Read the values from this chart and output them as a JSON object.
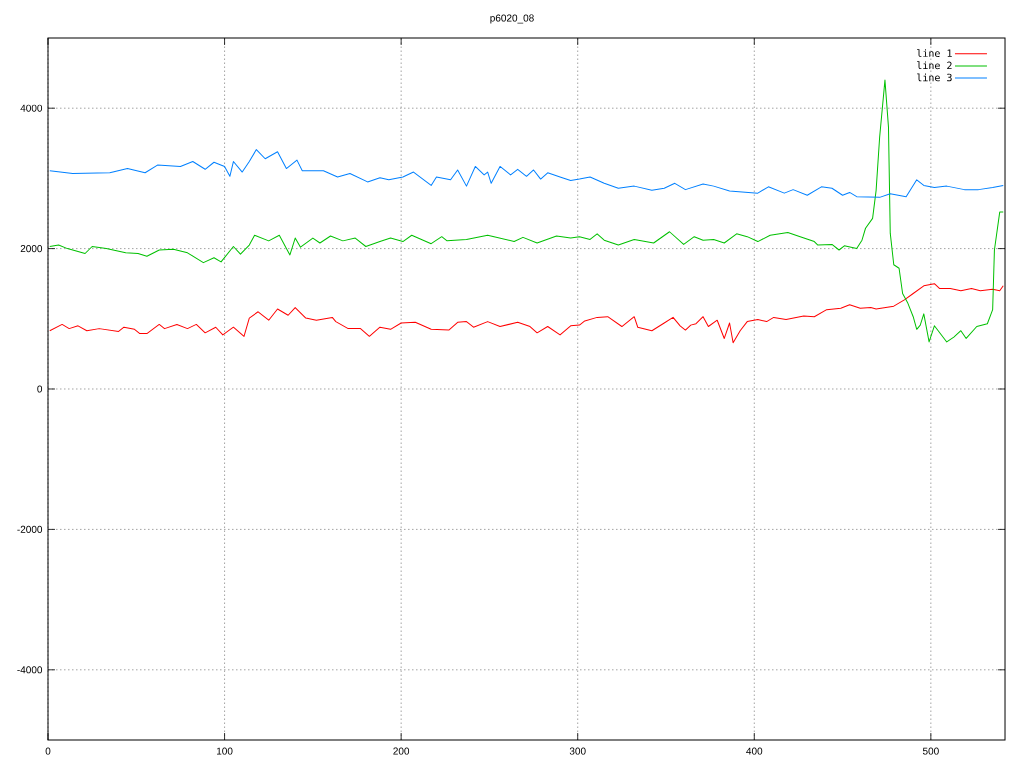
{
  "chart_data": {
    "type": "line",
    "title": "p6020_08",
    "xlim": [
      0,
      542
    ],
    "ylim": [
      -5000,
      5000
    ],
    "xticks": [
      0,
      100,
      200,
      300,
      400,
      500
    ],
    "yticks": [
      -4000,
      -2000,
      0,
      2000,
      4000
    ],
    "grid": true,
    "legend": "top right",
    "marker": "none",
    "line_style": "solid",
    "series": [
      {
        "name": "line 1",
        "color": "#ff0000",
        "x": [
          1,
          8,
          12,
          17,
          22,
          29,
          40,
          43,
          49,
          52,
          56,
          63,
          66,
          73,
          79,
          84,
          89,
          95,
          99,
          105,
          111,
          114,
          119,
          125,
          130,
          136,
          140,
          146,
          152,
          161,
          163,
          170,
          177,
          182,
          188,
          194,
          200,
          208,
          217,
          227,
          232,
          237,
          241,
          249,
          256,
          266,
          273,
          277,
          283,
          290,
          296,
          301,
          304,
          311,
          317,
          325,
          332,
          334,
          342,
          349,
          354,
          358,
          361,
          364,
          367,
          371,
          374,
          379,
          383,
          386,
          388,
          392,
          396,
          402,
          407,
          411,
          418,
          428,
          434,
          441,
          449,
          454,
          460,
          466,
          469,
          479,
          485,
          490,
          496,
          502,
          505,
          511,
          517,
          523,
          528,
          535,
          539,
          541
        ],
        "values": [
          830,
          920,
          860,
          900,
          830,
          860,
          820,
          880,
          850,
          790,
          790,
          920,
          860,
          920,
          860,
          920,
          800,
          880,
          770,
          880,
          750,
          1010,
          1100,
          980,
          1140,
          1050,
          1160,
          1010,
          980,
          1020,
          960,
          860,
          860,
          750,
          880,
          850,
          940,
          950,
          850,
          840,
          950,
          960,
          880,
          960,
          890,
          950,
          890,
          800,
          890,
          770,
          900,
          910,
          970,
          1020,
          1030,
          890,
          1030,
          880,
          830,
          940,
          1020,
          900,
          840,
          910,
          930,
          1030,
          890,
          980,
          720,
          940,
          660,
          830,
          960,
          990,
          960,
          1020,
          990,
          1040,
          1030,
          1130,
          1150,
          1200,
          1150,
          1160,
          1140,
          1180,
          1270,
          1360,
          1470,
          1500,
          1430,
          1430,
          1400,
          1430,
          1400,
          1420,
          1400,
          1470
        ]
      },
      {
        "name": "line 2",
        "color": "#00c000",
        "x": [
          1,
          6,
          11,
          21,
          25,
          33,
          44,
          51,
          56,
          63,
          71,
          79,
          88,
          94,
          98,
          105,
          109,
          114,
          117,
          125,
          131,
          137,
          140,
          143,
          150,
          154,
          160,
          167,
          174,
          180,
          188,
          194,
          201,
          206,
          217,
          223,
          226,
          237,
          249,
          264,
          269,
          277,
          288,
          296,
          301,
          307,
          311,
          315,
          323,
          332,
          343,
          352,
          360,
          366,
          371,
          377,
          383,
          390,
          396,
          402,
          409,
          419,
          426,
          434,
          436,
          444,
          448,
          451,
          458,
          461,
          463,
          467,
          469,
          471,
          474,
          476,
          477,
          479,
          482,
          484,
          487,
          490,
          492,
          494,
          496,
          499,
          502,
          509,
          513,
          517,
          520,
          526,
          532,
          535,
          536,
          539,
          541
        ],
        "values": [
          2030,
          2050,
          2000,
          1930,
          2030,
          2000,
          1940,
          1930,
          1890,
          1980,
          1990,
          1940,
          1800,
          1870,
          1810,
          2030,
          1920,
          2050,
          2190,
          2110,
          2190,
          1910,
          2150,
          2020,
          2150,
          2080,
          2180,
          2110,
          2150,
          2030,
          2100,
          2150,
          2100,
          2190,
          2070,
          2170,
          2110,
          2130,
          2190,
          2100,
          2160,
          2080,
          2180,
          2150,
          2170,
          2130,
          2210,
          2120,
          2050,
          2130,
          2080,
          2240,
          2060,
          2170,
          2120,
          2130,
          2080,
          2210,
          2170,
          2100,
          2190,
          2230,
          2170,
          2100,
          2050,
          2060,
          1980,
          2040,
          2000,
          2120,
          2290,
          2430,
          2830,
          3590,
          4400,
          3730,
          2220,
          1770,
          1720,
          1360,
          1220,
          1030,
          850,
          910,
          1070,
          670,
          900,
          670,
          740,
          830,
          720,
          890,
          930,
          1130,
          1980,
          2520,
          2520
        ]
      },
      {
        "name": "line 3",
        "color": "#0080ff",
        "x": [
          1,
          14,
          35,
          45,
          55,
          62,
          75,
          82,
          89,
          94,
          100,
          103,
          105,
          110,
          114,
          118,
          123,
          130,
          135,
          141,
          144,
          156,
          164,
          171,
          181,
          188,
          193,
          201,
          207,
          217,
          220,
          228,
          232,
          237,
          242,
          247,
          249,
          251,
          256,
          262,
          266,
          271,
          275,
          279,
          283,
          290,
          296,
          301,
          307,
          315,
          323,
          332,
          342,
          349,
          355,
          361,
          371,
          377,
          386,
          402,
          408,
          417,
          422,
          430,
          438,
          444,
          450,
          454,
          458,
          471,
          477,
          486,
          492,
          496,
          502,
          509,
          519,
          527,
          535,
          541
        ],
        "values": [
          3110,
          3070,
          3080,
          3140,
          3080,
          3190,
          3170,
          3240,
          3130,
          3230,
          3170,
          3030,
          3240,
          3090,
          3240,
          3410,
          3280,
          3380,
          3140,
          3260,
          3110,
          3110,
          3020,
          3070,
          2950,
          3010,
          2980,
          3020,
          3090,
          2900,
          3020,
          2980,
          3120,
          2890,
          3170,
          3050,
          3090,
          2930,
          3170,
          3050,
          3130,
          3030,
          3120,
          2990,
          3080,
          3020,
          2970,
          2990,
          3020,
          2930,
          2860,
          2890,
          2830,
          2860,
          2930,
          2840,
          2920,
          2890,
          2820,
          2790,
          2880,
          2790,
          2840,
          2760,
          2880,
          2860,
          2760,
          2800,
          2740,
          2730,
          2780,
          2740,
          2980,
          2900,
          2870,
          2890,
          2840,
          2840,
          2870,
          2900
        ]
      }
    ]
  }
}
